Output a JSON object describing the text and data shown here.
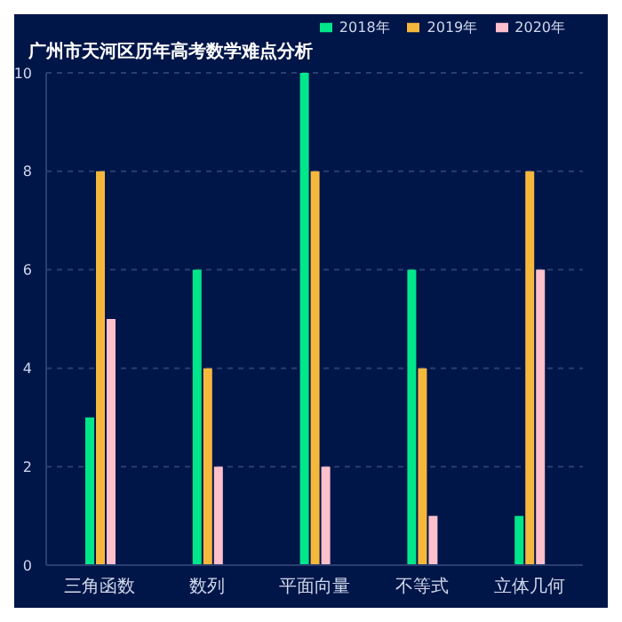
{
  "chart_data": {
    "type": "bar",
    "title": "广州市天河区历年高考数学难点分析",
    "categories": [
      "三角函数",
      "数列",
      "平面向量",
      "不等式",
      "立体几何"
    ],
    "series": [
      {
        "name": "2018年",
        "color": "#00e68a",
        "values": [
          3,
          6,
          10,
          6,
          1
        ]
      },
      {
        "name": "2019年",
        "color": "#f5b83d",
        "values": [
          8,
          4,
          8,
          4,
          8
        ]
      },
      {
        "name": "2020年",
        "color": "#ffc0cb",
        "values": [
          5,
          2,
          2,
          1,
          6
        ]
      }
    ],
    "ylim": [
      0,
      10
    ],
    "yticks": [
      0,
      2,
      4,
      6,
      8,
      10
    ],
    "grid": "y",
    "legend": "top right"
  }
}
